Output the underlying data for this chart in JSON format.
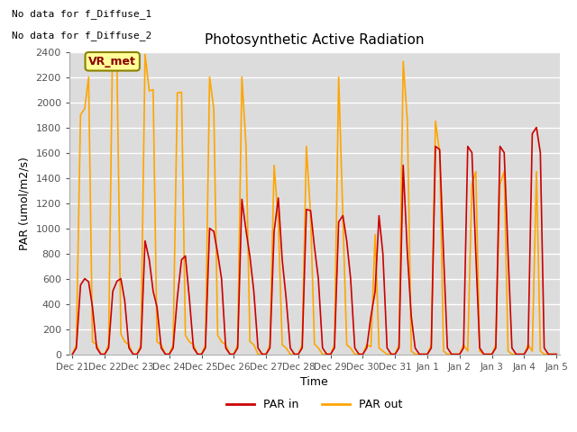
{
  "title": "Photosynthetic Active Radiation",
  "xlabel": "Time",
  "ylabel": "PAR (umol/m2/s)",
  "background_color": "#dcdcdc",
  "text_above": [
    "No data for f_Diffuse_1",
    "No data for f_Diffuse_2"
  ],
  "legend_box_label": "VR_met",
  "legend_box_color": "#ffff99",
  "legend_box_border": "#8B8000",
  "ylim": [
    0,
    2400
  ],
  "yticks": [
    0,
    200,
    400,
    600,
    800,
    1000,
    1200,
    1400,
    1600,
    1800,
    2000,
    2200,
    2400
  ],
  "x_labels": [
    "Dec 21",
    "Dec 22",
    "Dec 23",
    "Dec 24",
    "Dec 25",
    "Dec 26",
    "Dec 27",
    "Dec 28",
    "Dec 29",
    "Dec 30",
    "Dec 31",
    "Jan 1",
    "Jan 2",
    "Jan 3",
    "Jan 4",
    "Jan 5"
  ],
  "color_in": "#cc0000",
  "color_out": "#ffa500",
  "line_width": 1.2,
  "x_in": [
    0.0,
    0.12,
    0.25,
    0.38,
    0.5,
    0.62,
    0.75,
    0.88,
    1.0,
    1.0,
    1.12,
    1.25,
    1.38,
    1.5,
    1.62,
    1.75,
    1.88,
    2.0,
    2.0,
    2.12,
    2.25,
    2.38,
    2.5,
    2.62,
    2.75,
    2.88,
    3.0,
    3.0,
    3.12,
    3.25,
    3.38,
    3.5,
    3.62,
    3.75,
    3.88,
    4.0,
    4.0,
    4.12,
    4.25,
    4.38,
    4.5,
    4.62,
    4.75,
    4.88,
    5.0,
    5.0,
    5.12,
    5.25,
    5.38,
    5.5,
    5.62,
    5.75,
    5.88,
    6.0,
    6.0,
    6.12,
    6.25,
    6.38,
    6.5,
    6.62,
    6.75,
    6.88,
    7.0,
    7.0,
    7.12,
    7.25,
    7.38,
    7.5,
    7.62,
    7.75,
    7.88,
    8.0,
    8.0,
    8.12,
    8.25,
    8.38,
    8.5,
    8.62,
    8.75,
    8.88,
    9.0,
    9.0,
    9.12,
    9.25,
    9.38,
    9.5,
    9.62,
    9.75,
    9.88,
    10.0,
    10.0,
    10.12,
    10.25,
    10.38,
    10.5,
    10.62,
    10.75,
    10.88,
    11.0,
    11.0,
    11.12,
    11.25,
    11.38,
    11.5,
    11.62,
    11.75,
    11.88,
    12.0,
    12.0,
    12.12,
    12.25,
    12.38,
    12.5,
    12.62,
    12.75,
    12.88,
    13.0,
    13.0,
    13.12,
    13.25,
    13.38,
    13.5,
    13.62,
    13.75,
    13.88,
    14.0,
    14.0,
    14.12,
    14.25,
    14.38,
    14.5,
    14.62,
    14.75,
    14.88,
    15.0
  ],
  "y_in": [
    0,
    50,
    550,
    600,
    575,
    375,
    50,
    0,
    0,
    0,
    50,
    500,
    580,
    600,
    425,
    50,
    0,
    0,
    0,
    50,
    900,
    750,
    500,
    375,
    50,
    0,
    0,
    0,
    50,
    450,
    750,
    780,
    450,
    50,
    0,
    0,
    0,
    50,
    1000,
    975,
    800,
    600,
    50,
    0,
    0,
    0,
    50,
    1230,
    980,
    775,
    500,
    50,
    0,
    0,
    0,
    50,
    975,
    1240,
    750,
    450,
    50,
    0,
    0,
    0,
    50,
    1150,
    1140,
    850,
    600,
    50,
    0,
    0,
    0,
    50,
    1050,
    1100,
    900,
    600,
    50,
    0,
    0,
    0,
    50,
    300,
    500,
    1100,
    800,
    50,
    0,
    0,
    0,
    50,
    1500,
    800,
    300,
    50,
    0,
    0,
    0,
    0,
    50,
    1650,
    1625,
    800,
    50,
    0,
    0,
    0,
    0,
    50,
    1650,
    1600,
    800,
    50,
    0,
    0,
    0,
    0,
    50,
    1650,
    1600,
    800,
    50,
    0,
    0,
    0,
    0,
    50,
    1750,
    1800,
    1600,
    50,
    0,
    0,
    0
  ],
  "x_out": [
    0.0,
    0.12,
    0.25,
    0.38,
    0.5,
    0.62,
    0.75,
    0.88,
    1.0,
    1.0,
    1.12,
    1.25,
    1.38,
    1.5,
    1.62,
    1.75,
    1.88,
    2.0,
    2.0,
    2.12,
    2.25,
    2.38,
    2.5,
    2.62,
    2.75,
    2.88,
    3.0,
    3.0,
    3.12,
    3.25,
    3.38,
    3.5,
    3.62,
    3.75,
    3.88,
    4.0,
    4.0,
    4.12,
    4.25,
    4.38,
    4.5,
    4.62,
    4.75,
    4.88,
    5.0,
    5.0,
    5.12,
    5.25,
    5.38,
    5.5,
    5.62,
    5.75,
    5.88,
    6.0,
    6.0,
    6.12,
    6.25,
    6.38,
    6.5,
    6.62,
    6.75,
    6.88,
    7.0,
    7.0,
    7.12,
    7.25,
    7.38,
    7.5,
    7.62,
    7.75,
    7.88,
    8.0,
    8.0,
    8.12,
    8.25,
    8.38,
    8.5,
    8.62,
    8.75,
    8.88,
    9.0,
    9.0,
    9.12,
    9.25,
    9.38,
    9.5,
    9.62,
    9.75,
    9.88,
    10.0,
    10.0,
    10.12,
    10.25,
    10.38,
    10.5,
    10.62,
    10.75,
    10.88,
    11.0,
    11.0,
    11.12,
    11.25,
    11.38,
    11.5,
    11.62,
    11.75,
    11.88,
    12.0,
    12.0,
    12.12,
    12.25,
    12.38,
    12.5,
    12.62,
    12.75,
    12.88,
    13.0,
    13.0,
    13.12,
    13.25,
    13.38,
    13.5,
    13.62,
    13.75,
    13.88,
    14.0,
    14.0,
    14.12,
    14.25,
    14.38,
    14.5,
    14.62,
    14.75,
    14.88,
    15.0
  ],
  "y_out": [
    0,
    75,
    1900,
    1950,
    2200,
    100,
    75,
    0,
    0,
    0,
    75,
    2600,
    2280,
    160,
    100,
    75,
    0,
    0,
    0,
    75,
    2380,
    2090,
    2100,
    100,
    75,
    0,
    0,
    0,
    75,
    2075,
    2080,
    150,
    100,
    75,
    0,
    0,
    0,
    75,
    2200,
    1950,
    150,
    100,
    75,
    0,
    0,
    0,
    75,
    2200,
    1650,
    100,
    75,
    0,
    0,
    0,
    0,
    75,
    1500,
    1050,
    75,
    50,
    0,
    0,
    0,
    0,
    75,
    1650,
    1100,
    80,
    50,
    0,
    0,
    0,
    0,
    75,
    2200,
    1100,
    75,
    50,
    0,
    0,
    0,
    0,
    75,
    60,
    950,
    50,
    25,
    0,
    0,
    0,
    0,
    75,
    2325,
    1850,
    25,
    0,
    0,
    0,
    0,
    0,
    75,
    1850,
    1600,
    25,
    0,
    0,
    0,
    0,
    0,
    75,
    25,
    1350,
    1450,
    25,
    0,
    0,
    0,
    0,
    75,
    1350,
    1450,
    25,
    0,
    0,
    0,
    0,
    0,
    75,
    25,
    1450,
    25,
    0,
    0,
    0,
    0
  ]
}
